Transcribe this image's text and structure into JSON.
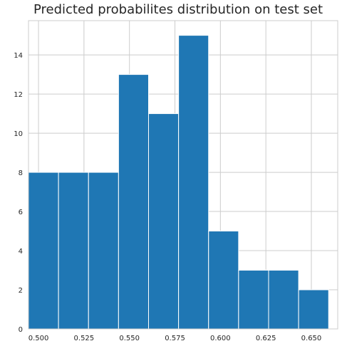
{
  "chart_data": {
    "type": "bar",
    "title": "Predicted probabilites distribution on test set",
    "xlabel": "",
    "ylabel": "",
    "xlim": [
      0.4945,
      0.6645
    ],
    "ylim": [
      0,
      15.75
    ],
    "grid": true,
    "bins": [
      {
        "start": 0.4945,
        "end": 0.511,
        "count": 8
      },
      {
        "start": 0.511,
        "end": 0.5275,
        "count": 8
      },
      {
        "start": 0.5275,
        "end": 0.544,
        "count": 8
      },
      {
        "start": 0.544,
        "end": 0.5605,
        "count": 13
      },
      {
        "start": 0.5605,
        "end": 0.577,
        "count": 11
      },
      {
        "start": 0.577,
        "end": 0.5935,
        "count": 15
      },
      {
        "start": 0.5935,
        "end": 0.61,
        "count": 5
      },
      {
        "start": 0.61,
        "end": 0.6265,
        "count": 3
      },
      {
        "start": 0.6265,
        "end": 0.643,
        "count": 3
      },
      {
        "start": 0.643,
        "end": 0.6595,
        "count": 2
      }
    ],
    "xticks": [
      0.5,
      0.525,
      0.55,
      0.575,
      0.6,
      0.625,
      0.65
    ],
    "xtick_labels": [
      "0.500",
      "0.525",
      "0.550",
      "0.575",
      "0.600",
      "0.625",
      "0.650"
    ],
    "yticks": [
      0,
      2,
      4,
      6,
      8,
      10,
      12,
      14
    ],
    "ytick_labels": [
      "0",
      "2",
      "4",
      "6",
      "8",
      "10",
      "12",
      "14"
    ],
    "bar_color": "#1f77b4",
    "grid_color": "#cccccc"
  }
}
